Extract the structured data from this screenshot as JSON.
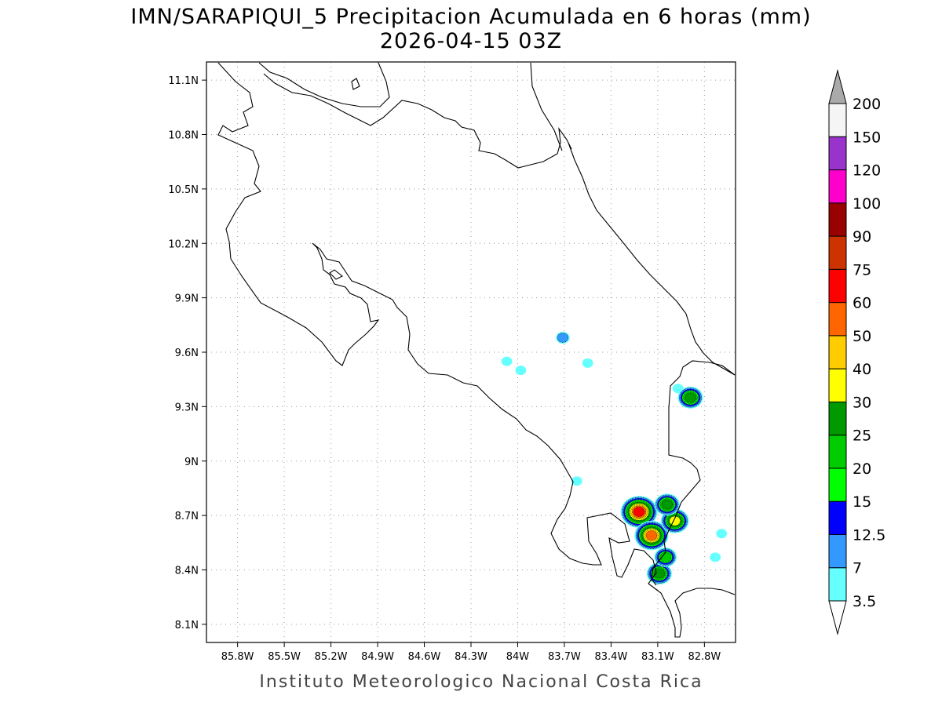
{
  "header": {
    "title_line1": "IMN/SARAPIQUI_5 Precipitacion Acumulada en 6 horas (mm)",
    "title_line2": "2026-04-15 03Z"
  },
  "footer": {
    "credit": "Instituto Meteorologico Nacional Costa Rica"
  },
  "map": {
    "lon_range": [
      -86.0,
      -82.6
    ],
    "lat_range": [
      8.0,
      11.2
    ],
    "x_ticks": [
      {
        "lon": -85.8,
        "label": "85.8W"
      },
      {
        "lon": -85.5,
        "label": "85.5W"
      },
      {
        "lon": -85.2,
        "label": "85.2W"
      },
      {
        "lon": -84.9,
        "label": "84.9W"
      },
      {
        "lon": -84.6,
        "label": "84.6W"
      },
      {
        "lon": -84.3,
        "label": "84.3W"
      },
      {
        "lon": -84.0,
        "label": "84W"
      },
      {
        "lon": -83.7,
        "label": "83.7W"
      },
      {
        "lon": -83.4,
        "label": "83.4W"
      },
      {
        "lon": -83.1,
        "label": "83.1W"
      },
      {
        "lon": -82.8,
        "label": "82.8W"
      }
    ],
    "y_ticks": [
      {
        "lat": 11.1,
        "label": "11.1N"
      },
      {
        "lat": 10.8,
        "label": "10.8N"
      },
      {
        "lat": 10.5,
        "label": "10.5N"
      },
      {
        "lat": 10.2,
        "label": "10.2N"
      },
      {
        "lat": 9.9,
        "label": "9.9N"
      },
      {
        "lat": 9.6,
        "label": "9.6N"
      },
      {
        "lat": 9.3,
        "label": "9.3N"
      },
      {
        "lat": 9.0,
        "label": "9N"
      },
      {
        "lat": 8.7,
        "label": "8.7N"
      },
      {
        "lat": 8.4,
        "label": "8.4N"
      },
      {
        "lat": 8.1,
        "label": "8.1N"
      }
    ],
    "grid": true
  },
  "colorbar": {
    "levels": [
      {
        "label": "3.5",
        "color": "#66ffff"
      },
      {
        "label": "7",
        "color": "#3399ff"
      },
      {
        "label": "12.5",
        "color": "#0000ff"
      },
      {
        "label": "15",
        "color": "#00ff00"
      },
      {
        "label": "20",
        "color": "#00cc00"
      },
      {
        "label": "25",
        "color": "#009900"
      },
      {
        "label": "30",
        "color": "#ffff00"
      },
      {
        "label": "40",
        "color": "#ffcc00"
      },
      {
        "label": "50",
        "color": "#ff6600"
      },
      {
        "label": "60",
        "color": "#ff0000"
      },
      {
        "label": "75",
        "color": "#cc3300"
      },
      {
        "label": "90",
        "color": "#990000"
      },
      {
        "label": "100",
        "color": "#ff00cc"
      },
      {
        "label": "120",
        "color": "#9933cc"
      },
      {
        "label": "150",
        "color": "#f5f5f5"
      },
      {
        "label": "200",
        "color": "#aaaaaa"
      }
    ]
  },
  "precip_cells": [
    {
      "lon": -83.71,
      "lat": 9.68,
      "level": 1
    },
    {
      "lon": -84.07,
      "lat": 9.55,
      "level": 0
    },
    {
      "lon": -83.98,
      "lat": 9.5,
      "level": 0
    },
    {
      "lon": -83.55,
      "lat": 9.54,
      "level": 0
    },
    {
      "lon": -82.97,
      "lat": 9.4,
      "level": 0
    },
    {
      "lon": -82.89,
      "lat": 9.35,
      "level": 5
    },
    {
      "lon": -83.22,
      "lat": 8.72,
      "level": 9
    },
    {
      "lon": -83.14,
      "lat": 8.59,
      "level": 8
    },
    {
      "lon": -82.99,
      "lat": 8.67,
      "level": 6
    },
    {
      "lon": -83.04,
      "lat": 8.76,
      "level": 5
    },
    {
      "lon": -83.09,
      "lat": 8.38,
      "level": 5
    },
    {
      "lon": -83.05,
      "lat": 8.47,
      "level": 4
    },
    {
      "lon": -82.69,
      "lat": 8.6,
      "level": 0
    },
    {
      "lon": -82.73,
      "lat": 8.47,
      "level": 0
    },
    {
      "lon": -83.62,
      "lat": 8.89,
      "level": 0
    }
  ]
}
